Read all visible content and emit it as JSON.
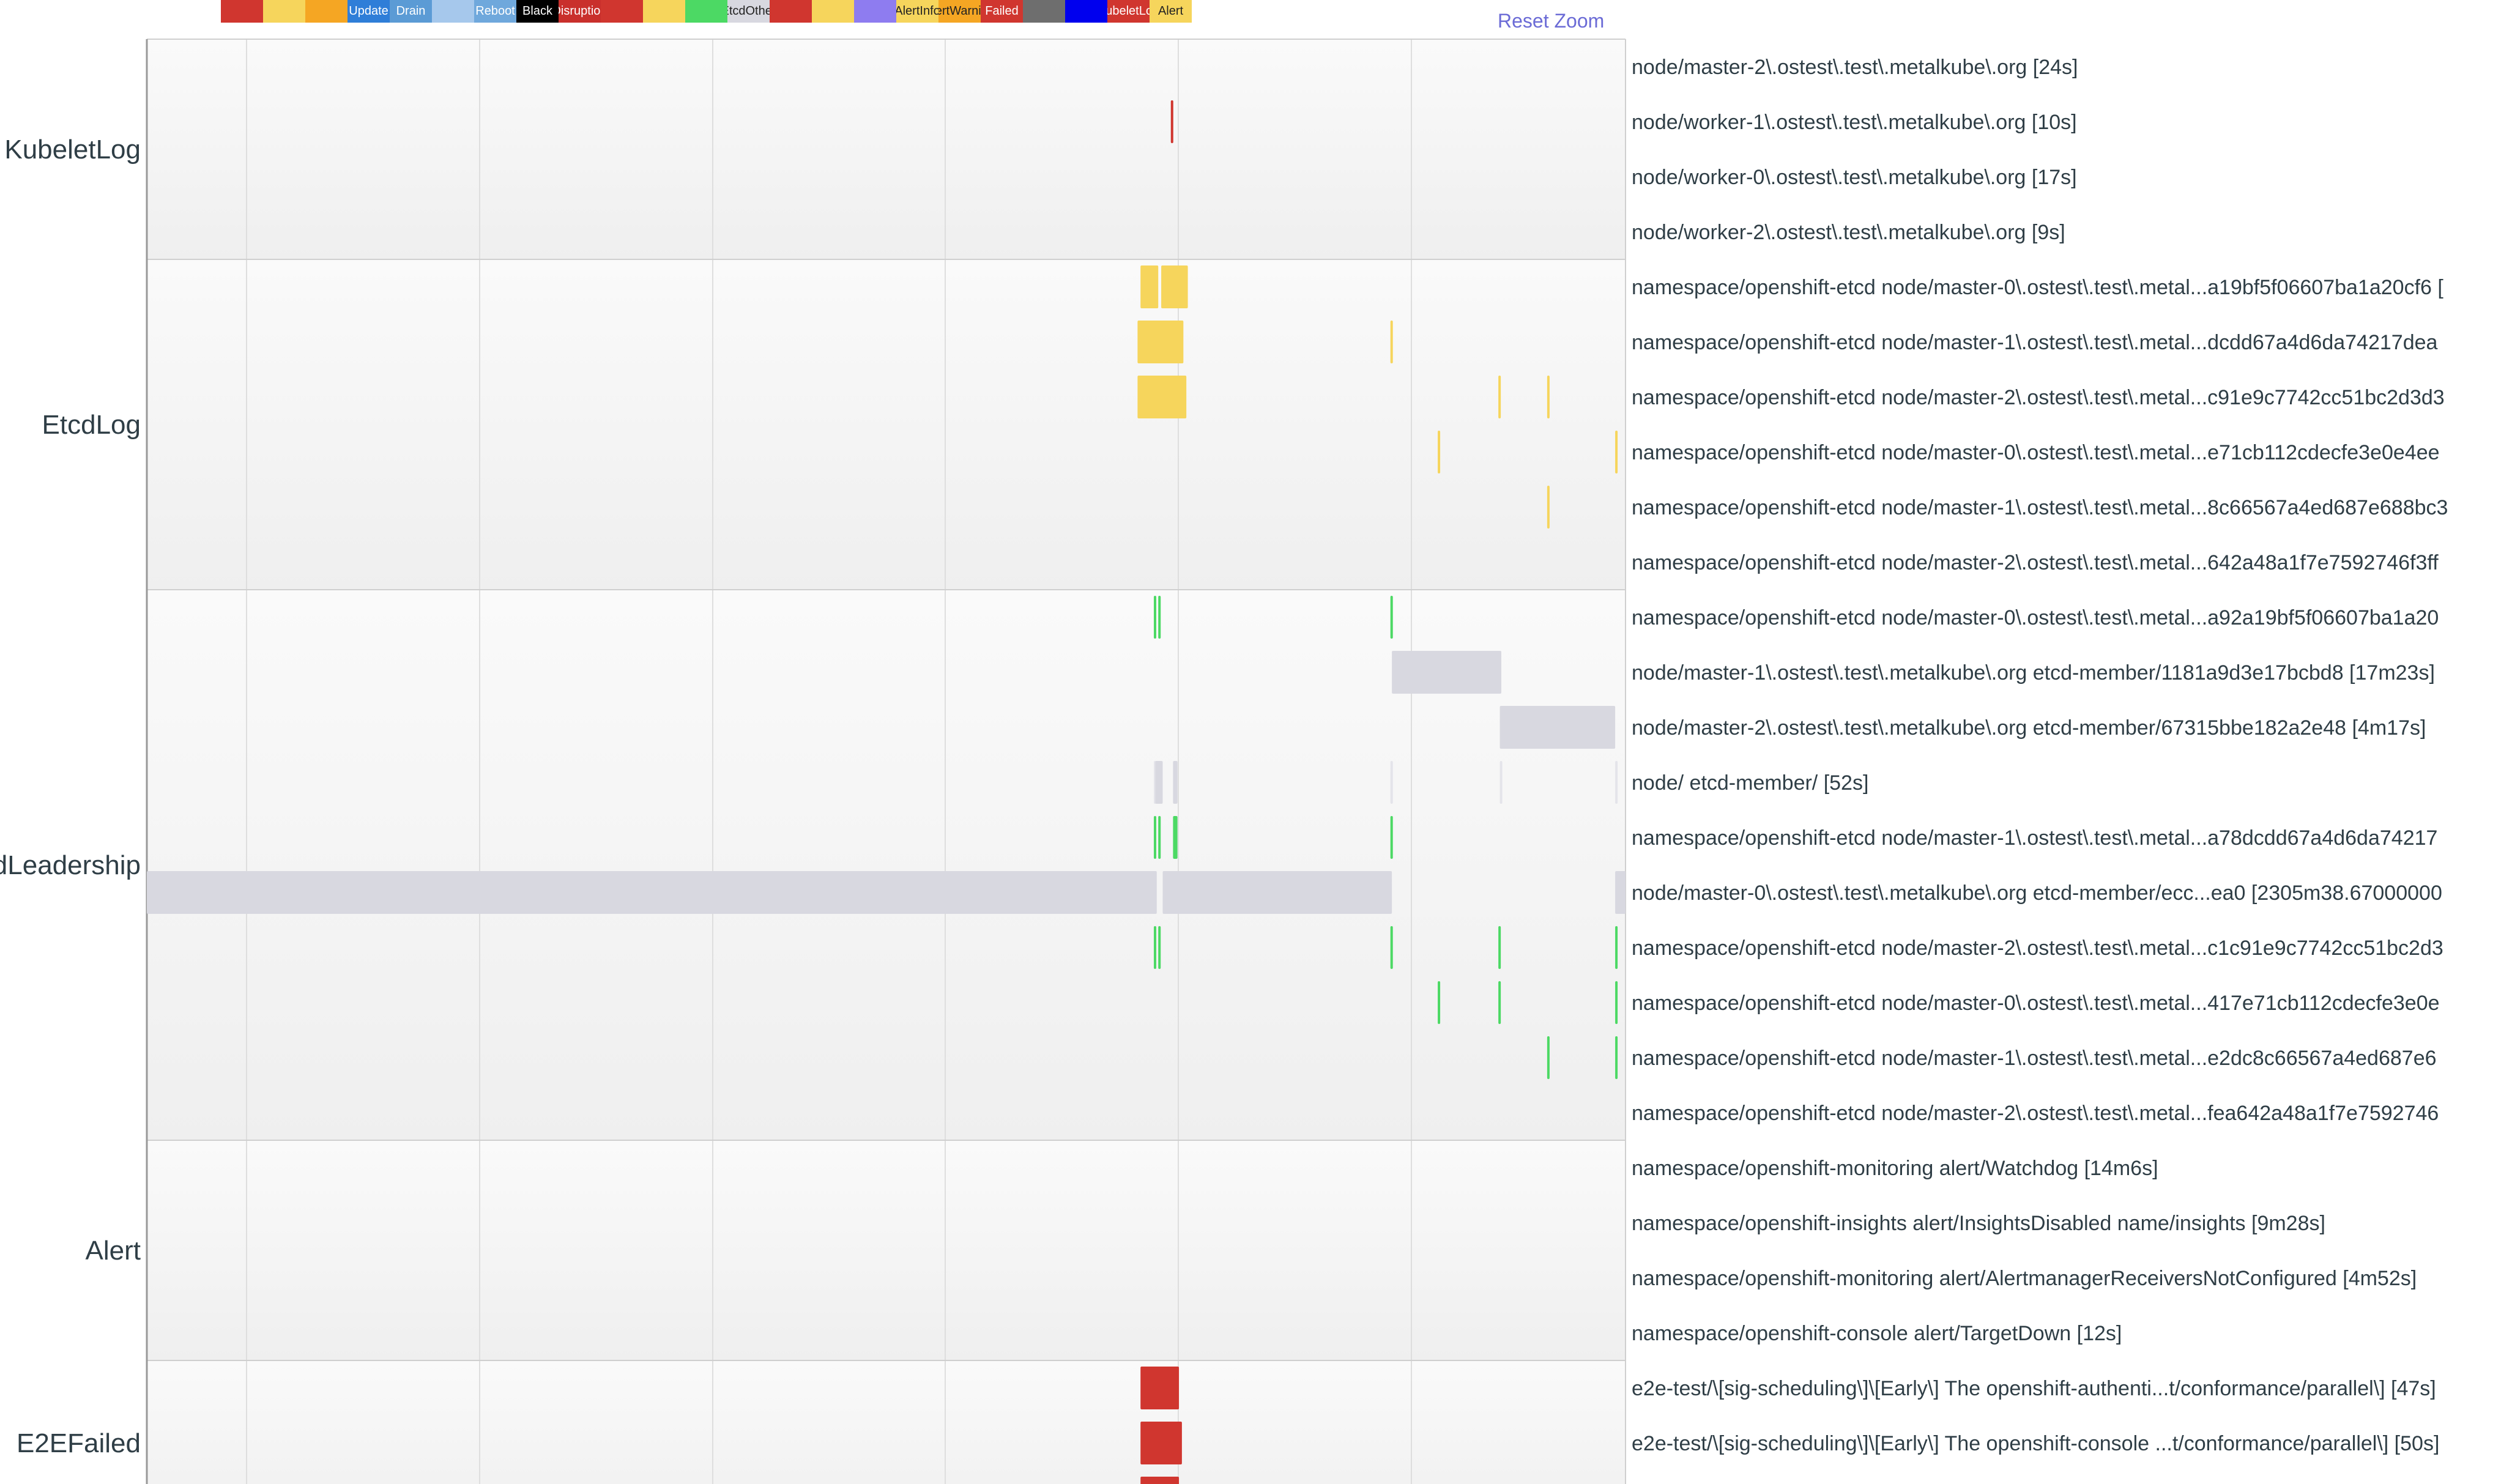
{
  "legend": [
    {
      "label": "",
      "color": "#d0362f"
    },
    {
      "label": "",
      "color": "#f6d55c"
    },
    {
      "label": "",
      "color": "#f5a623"
    },
    {
      "label": "Update",
      "color": "#2f7ed8"
    },
    {
      "label": "Drain",
      "color": "#5b9bd5"
    },
    {
      "label": "",
      "color": "#a6c8ec"
    },
    {
      "label": "Reboot",
      "color": "#6fa8dc"
    },
    {
      "label": "Black",
      "color": "#000000"
    },
    {
      "label": "Disruption",
      "color": "#c9302c"
    },
    {
      "label": "",
      "color": "#d0362f"
    },
    {
      "label": "",
      "color": "#f6d55c"
    },
    {
      "label": "",
      "color": "#4cd964"
    },
    {
      "label": "EtcdOther",
      "color": "#d8d8e0"
    },
    {
      "label": "",
      "color": "#d0362f"
    },
    {
      "label": "",
      "color": "#f6d55c"
    },
    {
      "label": "",
      "color": "#8e7cf0"
    },
    {
      "label": "AlertInfo",
      "color": "#f6d55c"
    },
    {
      "label": "AlertWarning",
      "color": "#f5a623"
    },
    {
      "label": "Failed",
      "color": "#d0362f"
    },
    {
      "label": "",
      "color": "#6e6e6e"
    },
    {
      "label": "",
      "color": "#0000ee"
    },
    {
      "label": "KubeletLog",
      "color": "#d0362f"
    },
    {
      "label": "Alert",
      "color": "#f6d55c"
    }
  ],
  "reset_zoom_label": "Reset Zoom",
  "chart_data": {
    "type": "timeline",
    "time_domain": [
      0,
      100
    ],
    "groups": [
      {
        "name": "KubeletLog",
        "rows": [
          {
            "label": "node/master-2\\.ostest\\.test\\.metalkube\\.org [24s]",
            "segments": []
          },
          {
            "label": "node/worker-1\\.ostest\\.test\\.metalkube\\.org [10s]",
            "segments": [
              {
                "start": 69.25,
                "end": 69.35,
                "color": "#d0362f"
              }
            ]
          },
          {
            "label": "node/worker-0\\.ostest\\.test\\.metalkube\\.org [17s]",
            "segments": []
          },
          {
            "label": "node/worker-2\\.ostest\\.test\\.metalkube\\.org [9s]",
            "segments": []
          }
        ]
      },
      {
        "name": "EtcdLog",
        "rows": [
          {
            "label": "namespace/openshift-etcd node/master-0\\.ostest\\.test\\.metal...a19bf5f06607ba1a20cf6 [",
            "segments": [
              {
                "start": 67.2,
                "end": 68.4,
                "color": "#f6d55c"
              },
              {
                "start": 68.6,
                "end": 70.4,
                "color": "#f6d55c"
              }
            ]
          },
          {
            "label": "namespace/openshift-etcd node/master-1\\.ostest\\.test\\.metal...dcdd67a4d6da74217dea",
            "segments": [
              {
                "start": 67.0,
                "end": 70.1,
                "color": "#f6d55c"
              },
              {
                "start": 84.1,
                "end": 84.25,
                "color": "#f6d55c"
              }
            ]
          },
          {
            "label": "namespace/openshift-etcd node/master-2\\.ostest\\.test\\.metal...c91e9c7742cc51bc2d3d3",
            "segments": [
              {
                "start": 67.0,
                "end": 70.3,
                "color": "#f6d55c"
              },
              {
                "start": 91.4,
                "end": 91.55,
                "color": "#f6d55c"
              },
              {
                "start": 94.7,
                "end": 94.85,
                "color": "#f6d55c"
              }
            ]
          },
          {
            "label": "namespace/openshift-etcd node/master-0\\.ostest\\.test\\.metal...e71cb112cdecfe3e0e4ee",
            "segments": [
              {
                "start": 87.3,
                "end": 87.45,
                "color": "#f6d55c"
              },
              {
                "start": 99.3,
                "end": 99.45,
                "color": "#f6d55c"
              }
            ]
          },
          {
            "label": "namespace/openshift-etcd node/master-1\\.ostest\\.test\\.metal...8c66567a4ed687e688bc3",
            "segments": [
              {
                "start": 94.7,
                "end": 94.85,
                "color": "#f6d55c"
              }
            ]
          },
          {
            "label": "namespace/openshift-etcd node/master-2\\.ostest\\.test\\.metal...642a48a1f7e7592746f3ff",
            "segments": []
          }
        ]
      },
      {
        "name": "EtcdLeadership",
        "rows": [
          {
            "label": "namespace/openshift-etcd node/master-0\\.ostest\\.test\\.metal...a92a19bf5f06607ba1a20",
            "segments": [
              {
                "start": 68.1,
                "end": 68.25,
                "color": "#4cd964"
              },
              {
                "start": 68.4,
                "end": 68.55,
                "color": "#4cd964"
              },
              {
                "start": 84.1,
                "end": 84.25,
                "color": "#4cd964"
              }
            ]
          },
          {
            "label": "node/master-1\\.ostest\\.test\\.metalkube\\.org etcd-member/1181a9d3e17bcbd8 [17m23s]",
            "segments": [
              {
                "start": 84.2,
                "end": 91.6,
                "color": "#d8d8e0"
              }
            ]
          },
          {
            "label": "node/master-2\\.ostest\\.test\\.metalkube\\.org etcd-member/67315bbe182a2e48 [4m17s]",
            "segments": [
              {
                "start": 91.5,
                "end": 99.3,
                "color": "#d8d8e0"
              }
            ]
          },
          {
            "label": "node/ etcd-member/ [52s]",
            "segments": [
              {
                "start": 68.1,
                "end": 68.2,
                "color": "#e4e4ea"
              },
              {
                "start": 68.2,
                "end": 68.7,
                "color": "#d8d8e0"
              },
              {
                "start": 69.4,
                "end": 69.7,
                "color": "#d8d8e0"
              },
              {
                "start": 84.1,
                "end": 84.2,
                "color": "#e4e4ea"
              },
              {
                "start": 91.5,
                "end": 91.6,
                "color": "#e4e4ea"
              },
              {
                "start": 99.3,
                "end": 99.4,
                "color": "#e4e4ea"
              }
            ]
          },
          {
            "label": "namespace/openshift-etcd node/master-1\\.ostest\\.test\\.metal...a78dcdd67a4d6da74217",
            "segments": [
              {
                "start": 68.1,
                "end": 68.25,
                "color": "#4cd964"
              },
              {
                "start": 68.4,
                "end": 68.55,
                "color": "#4cd964"
              },
              {
                "start": 69.4,
                "end": 69.7,
                "color": "#4cd964"
              },
              {
                "start": 84.1,
                "end": 84.25,
                "color": "#4cd964"
              }
            ]
          },
          {
            "label": "node/master-0\\.ostest\\.test\\.metalkube\\.org etcd-member/ecc...ea0 [2305m38.67000000",
            "segments": [
              {
                "start": 0,
                "end": 68.3,
                "color": "#d8d8e0"
              },
              {
                "start": 68.7,
                "end": 84.2,
                "color": "#d8d8e0"
              },
              {
                "start": 99.3,
                "end": 100,
                "color": "#d8d8e0"
              }
            ]
          },
          {
            "label": "namespace/openshift-etcd node/master-2\\.ostest\\.test\\.metal...c1c91e9c7742cc51bc2d3",
            "segments": [
              {
                "start": 68.1,
                "end": 68.25,
                "color": "#4cd964"
              },
              {
                "start": 68.4,
                "end": 68.55,
                "color": "#4cd964"
              },
              {
                "start": 84.1,
                "end": 84.25,
                "color": "#4cd964"
              },
              {
                "start": 91.4,
                "end": 91.55,
                "color": "#4cd964"
              },
              {
                "start": 99.3,
                "end": 99.45,
                "color": "#4cd964"
              }
            ]
          },
          {
            "label": "namespace/openshift-etcd node/master-0\\.ostest\\.test\\.metal...417e71cb112cdecfe3e0e",
            "segments": [
              {
                "start": 87.3,
                "end": 87.45,
                "color": "#4cd964"
              },
              {
                "start": 91.4,
                "end": 91.55,
                "color": "#4cd964"
              },
              {
                "start": 99.3,
                "end": 99.45,
                "color": "#4cd964"
              }
            ]
          },
          {
            "label": "namespace/openshift-etcd node/master-1\\.ostest\\.test\\.metal...e2dc8c66567a4ed687e6",
            "segments": [
              {
                "start": 94.7,
                "end": 94.85,
                "color": "#4cd964"
              },
              {
                "start": 99.3,
                "end": 99.45,
                "color": "#4cd964"
              }
            ]
          },
          {
            "label": "namespace/openshift-etcd node/master-2\\.ostest\\.test\\.metal...fea642a48a1f7e7592746",
            "segments": []
          }
        ]
      },
      {
        "name": "Alert",
        "rows": [
          {
            "label": "namespace/openshift-monitoring alert/Watchdog [14m6s]",
            "segments": []
          },
          {
            "label": "namespace/openshift-insights alert/InsightsDisabled name/insights [9m28s]",
            "segments": []
          },
          {
            "label": "namespace/openshift-monitoring alert/AlertmanagerReceiversNotConfigured [4m52s]",
            "segments": []
          },
          {
            "label": "namespace/openshift-console alert/TargetDown [12s]",
            "segments": []
          }
        ]
      },
      {
        "name": "E2EFailed",
        "rows": [
          {
            "label": "e2e-test/\\[sig-scheduling\\]\\[Early\\] The openshift-authenti...t/conformance/parallel\\] [47s]",
            "segments": [
              {
                "start": 67.2,
                "end": 69.8,
                "color": "#d0362f"
              }
            ]
          },
          {
            "label": "e2e-test/\\[sig-scheduling\\]\\[Early\\] The openshift-console ...t/conformance/parallel\\] [50s]",
            "segments": [
              {
                "start": 67.2,
                "end": 70.0,
                "color": "#d0362f"
              }
            ]
          },
          {
            "label": "",
            "segments": [
              {
                "start": 67.2,
                "end": 69.8,
                "color": "#d0362f"
              }
            ]
          }
        ]
      }
    ]
  }
}
